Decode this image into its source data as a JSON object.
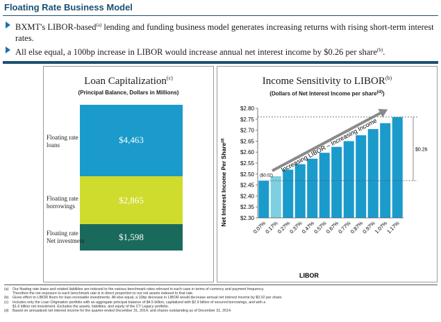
{
  "header": {
    "title": "Floating Rate Business Model"
  },
  "bullets": [
    {
      "text_a": "BXMT's LIBOR-based",
      "sup": "(a)",
      "text_b": " lending and funding business model generates increasing returns with rising short-term interest rates."
    },
    {
      "text_a": "All else equal, a 100bp increase in LIBOR would increase annual net interest income by $0.26 per share",
      "sup": "(b)",
      "text_b": "."
    }
  ],
  "left_chart": {
    "title": "Loan Capitalization",
    "title_sup": "(c)",
    "subtitle": "(Principal Balance, Dollars in Millions)",
    "colors": {
      "floating_loans": "#1b9bcb",
      "floating_borrowings": "#cfdc2d",
      "net_investment": "#1a6a5c"
    }
  },
  "chart_data": [
    {
      "type": "bar",
      "stacked": true,
      "title": "Loan Capitalization",
      "categories": [
        "Floating rate Net investment",
        "Floating rate borrowings",
        "Floating rate loans"
      ],
      "values": [
        1598,
        2865,
        4463
      ],
      "value_labels": [
        "$1,598",
        "$2,865",
        "$4,463"
      ],
      "segment_labels": [
        [
          "Floating rate",
          "Net investment"
        ],
        [
          "Floating rate",
          "borrowings"
        ],
        [
          "Floating rate",
          "loans"
        ]
      ]
    },
    {
      "type": "bar",
      "title": "Income Sensitivity to LIBOR",
      "title_sup": "(b)",
      "subtitle": "(Dollars of Net Interest Income per share",
      "subtitle_sup": "(d)",
      "subtitle_end": ")",
      "xlabel": "LIBOR",
      "ylabel": "Net Interest Income Per Share",
      "ylabel_sup": "(d)",
      "categories": [
        "0.07%",
        "0.17%",
        "0.27%",
        "0.37%",
        "0.47%",
        "0.57%",
        "0.67%",
        "0.77%",
        "0.87%",
        "0.97%",
        "1.07%",
        "1.17%"
      ],
      "values": [
        2.47,
        2.49,
        2.52,
        2.545,
        2.57,
        2.597,
        2.624,
        2.65,
        2.677,
        2.705,
        2.732,
        2.76
      ],
      "ylim": [
        2.3,
        2.8
      ],
      "yticks": [
        "$2.30",
        "$2.35",
        "$2.40",
        "$2.45",
        "$2.50",
        "$2.55",
        "$2.60",
        "$2.65",
        "$2.70",
        "$2.75",
        "$2.80"
      ],
      "annotations": {
        "first_delta": "($0.02)",
        "total_delta": "$0.26",
        "arrow_text": "Increasing LIBOR – Increasing Income"
      },
      "colors": {
        "bar": "#1b9bcb",
        "highlight": "#7ecfe0"
      }
    }
  ],
  "footnotes": [
    {
      "key": "(a)",
      "text": "Our floating rate loans and related liabilities are indexed to the various benchmark rates relevant in each case in terms of currency and payment frequency."
    },
    {
      "key": "",
      "text": "Therefore the net exposure to each benchmark rate is in direct proportion to our net assets indexed to that rate."
    },
    {
      "key": "(b)",
      "text": "Gives effect to LIBOR floors for loan receivable investments. All else equal, a 10bp decrease in LIBOR would decrease annual net interest income by $0.02 per share."
    },
    {
      "key": "(c)",
      "text": "Includes only the Loan Origination portfolio with an aggregate principal balance of $4.5 billion, capitalized with $2.9 billion of secured borrowings, and with a"
    },
    {
      "key": "",
      "text": "$1.6 billion net investment. Excludes the assets, liabilities, and equity of the CT Legacy portfolio."
    },
    {
      "key": "(d)",
      "text": "Based on annualized net interest income for the quarter-ended December 31, 2014, and shares outstanding as of December 31, 2014."
    }
  ]
}
